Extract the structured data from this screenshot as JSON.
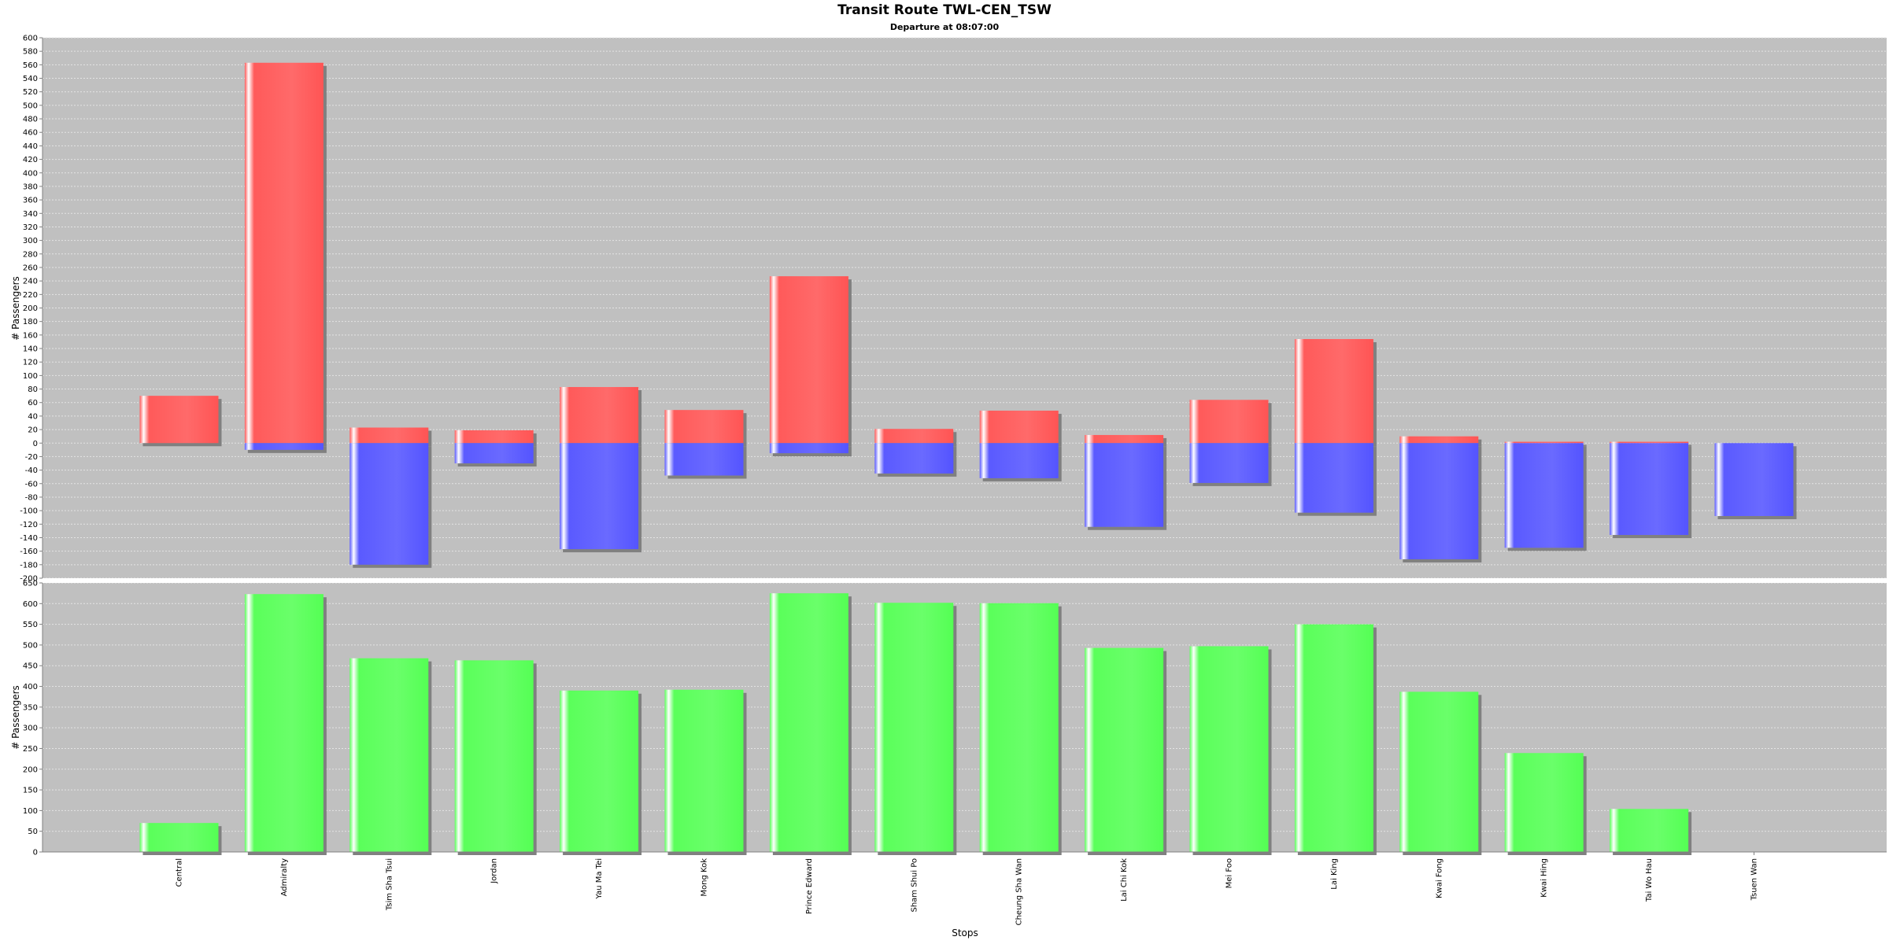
{
  "chart_data": {
    "type": "bar",
    "title": "Transit Route TWL-CEN_TSW",
    "subtitle": "Departure at 08:07:00",
    "xlabel": "Stops",
    "categories": [
      "Central",
      "Admiralty",
      "Tsim Sha Tsui",
      "Jordan",
      "Yau Ma Tei",
      "Mong Kok",
      "Prince Edward",
      "Sham Shui Po",
      "Cheung Sha Wan",
      "Lai Chi Kok",
      "Mei Foo",
      "Lai King",
      "Kwai Fong",
      "Kwai Hing",
      "Tai Wo Hau",
      "Tsuen Wan"
    ],
    "grid": true,
    "panels": [
      {
        "ylabel": "# Passengers",
        "ylim": [
          -200,
          600
        ],
        "ytick_step": 20,
        "series": [
          {
            "color": "#ff5555",
            "values": [
              70,
              563,
              23,
              19,
              83,
              49,
              247,
              21,
              48,
              12,
              64,
              154,
              10,
              2,
              2,
              0
            ]
          },
          {
            "color": "#5555ff",
            "values": [
              0,
              -10,
              -180,
              -30,
              -157,
              -48,
              -15,
              -45,
              -52,
              -124,
              -59,
              -103,
              -172,
              -155,
              -136,
              -108
            ]
          }
        ]
      },
      {
        "ylabel": "# Passengers",
        "ylim": [
          0,
          650
        ],
        "ytick_step": 50,
        "series": [
          {
            "color": "#55ff55",
            "values": [
              70,
              623,
              468,
              463,
              390,
              392,
              625,
              602,
              601,
              493,
              497,
              550,
              387,
              239,
              104,
              0
            ]
          }
        ]
      }
    ]
  }
}
